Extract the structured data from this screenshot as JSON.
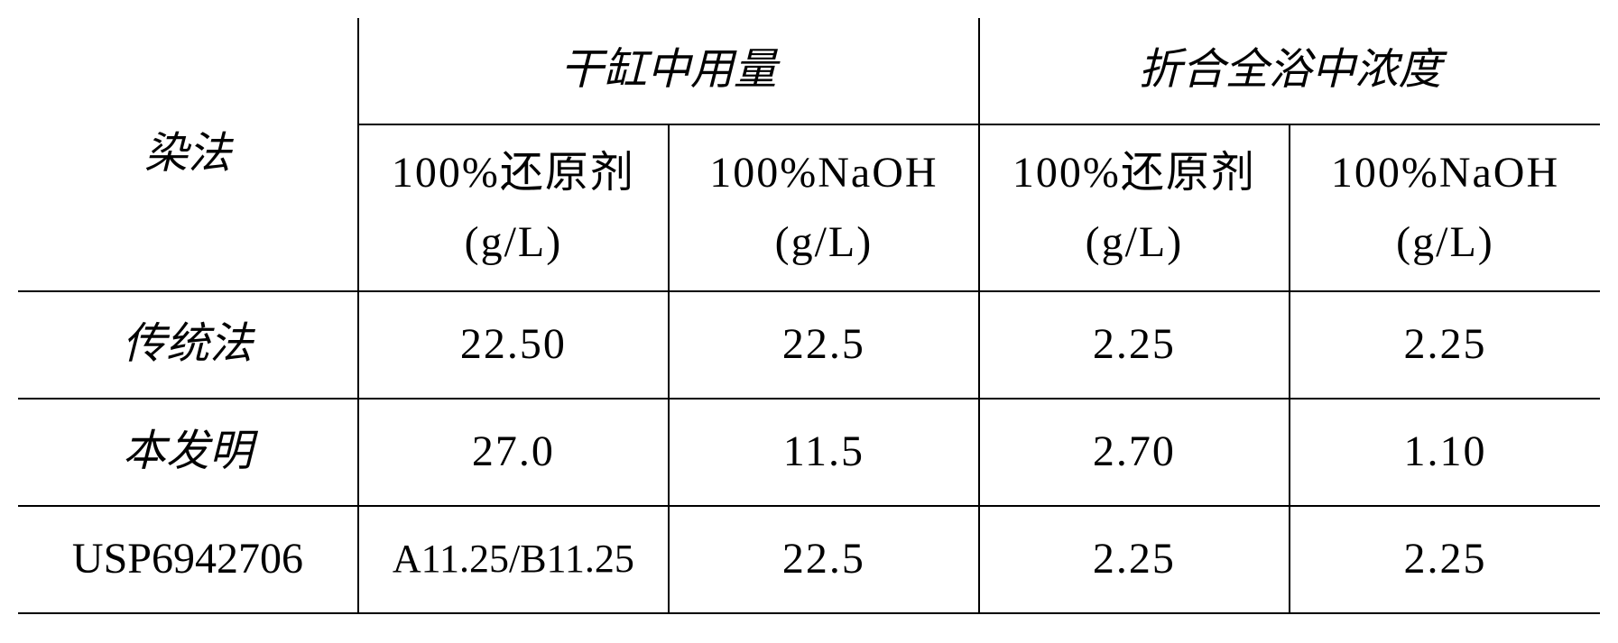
{
  "table": {
    "colors": {
      "border": "#000000",
      "background": "#ffffff",
      "text": "#000000"
    },
    "font": {
      "header_family": "KaiTi",
      "body_family": "Times New Roman",
      "size_pt": 48,
      "line_height": 1.6
    },
    "columns": {
      "method_width": "21.5%",
      "sub_width": "19.625%"
    },
    "headers": {
      "method": "染法",
      "group1": "干缸中用量",
      "group2": "折合全浴中浓度",
      "sub1": "100%还原剂\n(g/L)",
      "sub2": "100%NaOH\n(g/L)",
      "sub3": "100%还原剂\n(g/L)",
      "sub4": "100%NaOH\n(g/L)"
    },
    "rows": [
      {
        "method": "传统法",
        "method_style": "italic",
        "v1": "22.50",
        "v2": "22.5",
        "v3": "2.25",
        "v4": "2.25"
      },
      {
        "method": "本发明",
        "method_style": "italic",
        "v1": "27.0",
        "v2": "11.5",
        "v3": "2.70",
        "v4": "1.10"
      },
      {
        "method": "USP6942706",
        "method_style": "normal",
        "v1": "A11.25/B11.25",
        "v1_tight": true,
        "v2": "22.5",
        "v3": "2.25",
        "v4": "2.25"
      }
    ]
  }
}
